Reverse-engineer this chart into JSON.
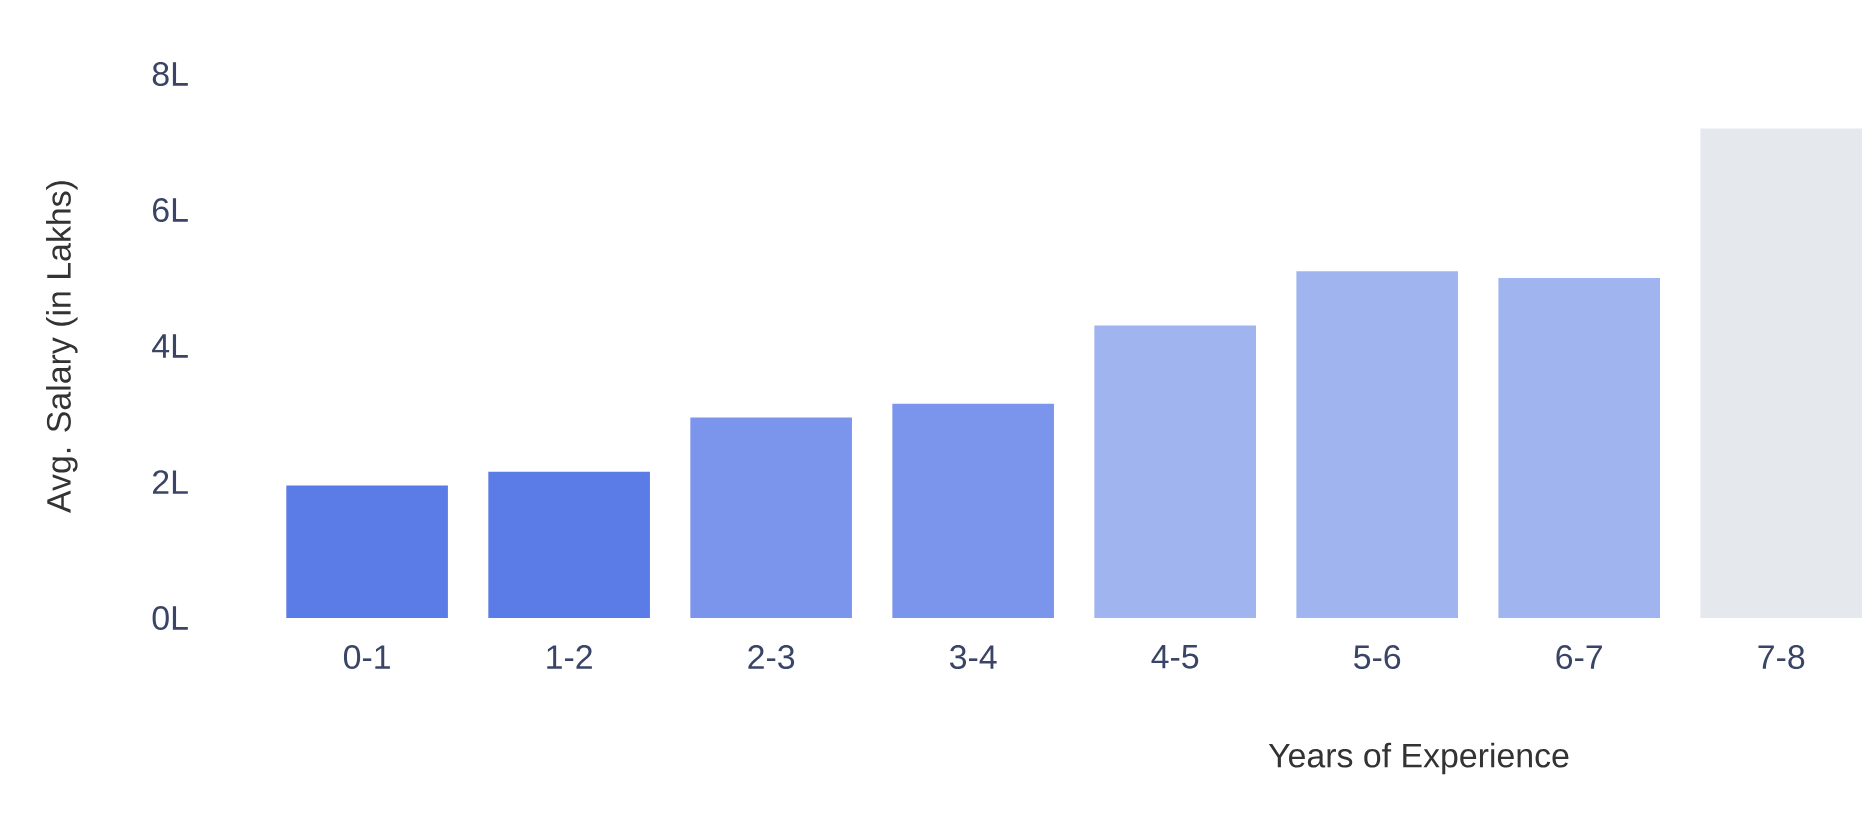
{
  "chart_data": {
    "type": "bar",
    "xlabel": "Years of Experience",
    "ylabel": "Avg. Salary (in Lakhs)",
    "categories": [
      "0-1",
      "1-2",
      "2-3",
      "3-4",
      "4-5",
      "5-6",
      "6-7",
      "7-8"
    ],
    "values": [
      1.95,
      2.15,
      2.95,
      3.15,
      4.3,
      5.1,
      5.0,
      7.2
    ],
    "colors": [
      "#5b7be6",
      "#5b7be6",
      "#7b95ec",
      "#7b95ec",
      "#a0b4f0",
      "#a0b4f0",
      "#a0b4f0",
      "#e5e8ec"
    ],
    "ylim": [
      0,
      8
    ],
    "yticks": [
      {
        "value": 0,
        "label": "0L"
      },
      {
        "value": 2,
        "label": "2L"
      },
      {
        "value": 4,
        "label": "4L"
      },
      {
        "value": 6,
        "label": "6L"
      },
      {
        "value": 8,
        "label": "8L"
      }
    ],
    "grid": false
  }
}
